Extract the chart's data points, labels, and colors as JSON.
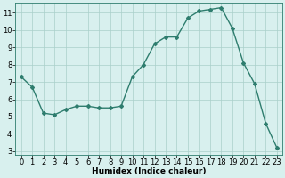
{
  "x": [
    0,
    1,
    2,
    3,
    4,
    5,
    6,
    7,
    8,
    9,
    10,
    11,
    12,
    13,
    14,
    15,
    16,
    17,
    18,
    19,
    20,
    21,
    22,
    23
  ],
  "y": [
    7.3,
    6.7,
    5.2,
    5.1,
    5.4,
    5.6,
    5.6,
    5.5,
    5.5,
    5.6,
    7.3,
    8.0,
    9.2,
    9.6,
    9.6,
    10.7,
    11.1,
    11.2,
    11.3,
    10.1,
    8.1,
    6.9,
    4.6,
    3.2
  ],
  "line_color": "#2e7d6e",
  "marker": "D",
  "marker_size": 2.0,
  "line_width": 1.0,
  "bg_color": "#d8f0ee",
  "grid_color": "#aacfca",
  "xlabel": "Humidex (Indice chaleur)",
  "xlim": [
    -0.5,
    23.5
  ],
  "ylim": [
    2.8,
    11.6
  ],
  "yticks": [
    3,
    4,
    5,
    6,
    7,
    8,
    9,
    10,
    11
  ],
  "xticks": [
    0,
    1,
    2,
    3,
    4,
    5,
    6,
    7,
    8,
    9,
    10,
    11,
    12,
    13,
    14,
    15,
    16,
    17,
    18,
    19,
    20,
    21,
    22,
    23
  ],
  "xlabel_fontsize": 6.5,
  "tick_fontsize": 6.0
}
